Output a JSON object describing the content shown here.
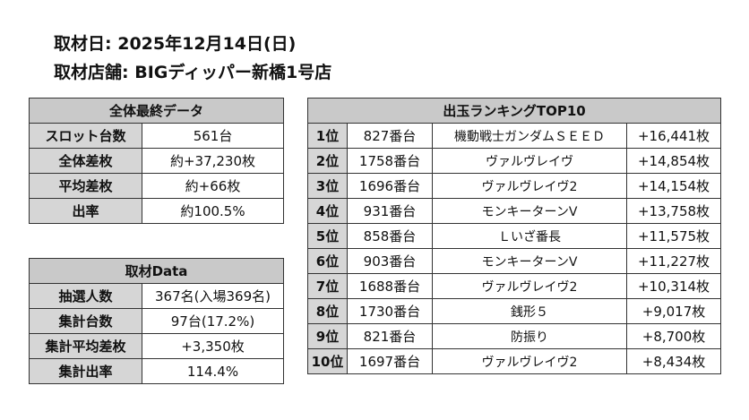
{
  "header": {
    "date_label": "取材日",
    "date_value": "2025年12月14日(日)",
    "store_label": "取材店舗",
    "store_value": "BIGディッパー新橋1号店"
  },
  "overall": {
    "title": "全体最終データ",
    "rows": [
      {
        "label": "スロット台数",
        "value": "561台"
      },
      {
        "label": "全体差枚",
        "value": "約+37,230枚"
      },
      {
        "label": "平均差枚",
        "value": "約+66枚"
      },
      {
        "label": "出率",
        "value": "約100.5%"
      }
    ]
  },
  "data": {
    "title": "取材Data",
    "rows": [
      {
        "label": "抽選人数",
        "value": "367名(入場369名)"
      },
      {
        "label": "集計台数",
        "value": "97台(17.2%)"
      },
      {
        "label": "集計平均差枚",
        "value": "+3,350枚"
      },
      {
        "label": "集計出率",
        "value": "114.4%"
      }
    ]
  },
  "ranking": {
    "title": "出玉ランキングTOP10",
    "rows": [
      {
        "rank": "1位",
        "number": "827番台",
        "machine": "機動戦士ガンダムＳＥＥＤ",
        "diff": "+16,441枚"
      },
      {
        "rank": "2位",
        "number": "1758番台",
        "machine": "ヴァルヴレイヴ",
        "diff": "+14,854枚"
      },
      {
        "rank": "3位",
        "number": "1696番台",
        "machine": "ヴァルヴレイヴ2",
        "diff": "+14,154枚"
      },
      {
        "rank": "4位",
        "number": "931番台",
        "machine": "モンキーターンV",
        "diff": "+13,758枚"
      },
      {
        "rank": "5位",
        "number": "858番台",
        "machine": "Ｌいざ番長",
        "diff": "+11,575枚"
      },
      {
        "rank": "6位",
        "number": "903番台",
        "machine": "モンキーターンV",
        "diff": "+11,227枚"
      },
      {
        "rank": "7位",
        "number": "1688番台",
        "machine": "ヴァルヴレイヴ2",
        "diff": "+10,314枚"
      },
      {
        "rank": "8位",
        "number": "1730番台",
        "machine": "銭形５",
        "diff": "+9,017枚"
      },
      {
        "rank": "9位",
        "number": "821番台",
        "machine": "防振り",
        "diff": "+8,700枚"
      },
      {
        "rank": "10位",
        "number": "1697番台",
        "machine": "ヴァルヴレイヴ2",
        "diff": "+8,434枚"
      }
    ]
  }
}
